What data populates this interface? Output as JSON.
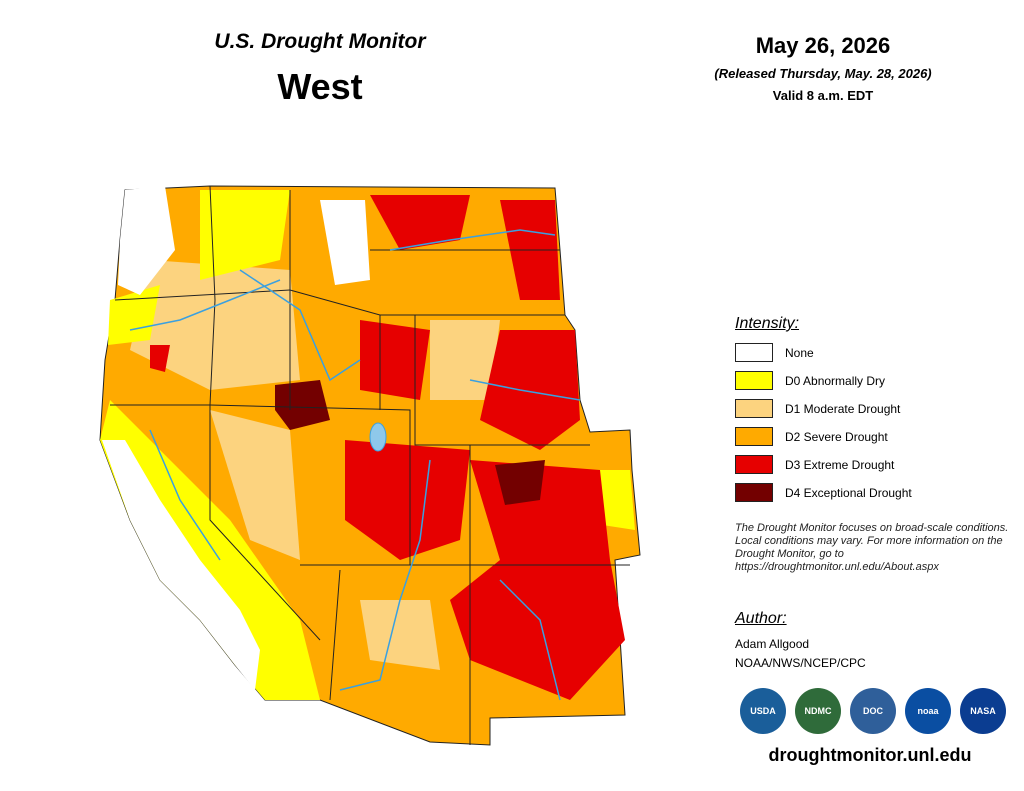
{
  "header": {
    "title": "U.S. Drought Monitor",
    "region": "West",
    "date": "May 26, 2026",
    "released": "(Released Thursday, May. 28, 2026)",
    "valid": "Valid 8 a.m. EDT"
  },
  "legend": {
    "title": "Intensity:",
    "items": [
      {
        "label": "None",
        "color": "#ffffff"
      },
      {
        "label": "D0 Abnormally Dry",
        "color": "#ffff00"
      },
      {
        "label": "D1 Moderate Drought",
        "color": "#fcd37f"
      },
      {
        "label": "D2 Severe Drought",
        "color": "#ffaa00"
      },
      {
        "label": "D3 Extreme Drought",
        "color": "#e60000"
      },
      {
        "label": "D4 Exceptional Drought",
        "color": "#730000"
      }
    ]
  },
  "note": "The Drought Monitor focuses on broad-scale conditions. Local conditions may vary. For more information on the Drought Monitor, go to https://droughtmonitor.unl.edu/About.aspx",
  "author": {
    "title": "Author:",
    "name": "Adam Allgood",
    "org": "NOAA/NWS/NCEP/CPC"
  },
  "logos": [
    {
      "label": "USDA",
      "color": "#1a5e9a"
    },
    {
      "label": "NDMC",
      "color": "#2f6b3a"
    },
    {
      "label": "DOC",
      "color": "#2f5f9a"
    },
    {
      "label": "noaa",
      "color": "#0a4ea2"
    },
    {
      "label": "NASA",
      "color": "#0b3d91"
    }
  ],
  "url": "droughtmonitor.unl.edu"
}
